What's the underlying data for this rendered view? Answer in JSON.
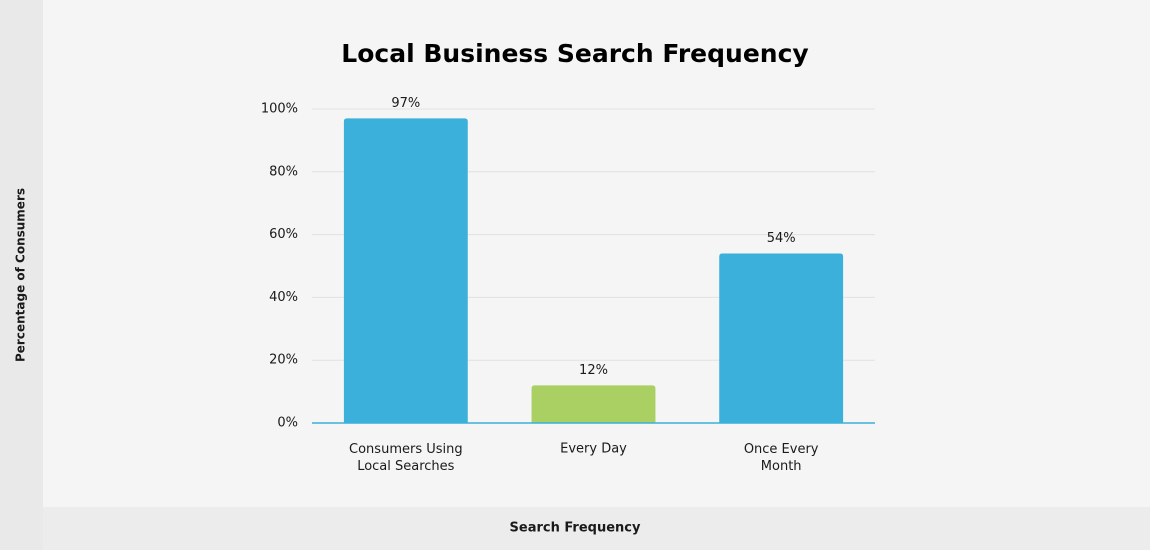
{
  "chart_data": {
    "type": "bar",
    "title": "Local Business Search Frequency",
    "x_label": "Search Frequency",
    "y_label": "Percentage of Consumers",
    "categories": [
      "Consumers Using\nLocal Searches",
      "Every Day",
      "Once Every\nMonth"
    ],
    "values": [
      97,
      12,
      54
    ],
    "value_labels": [
      "97%",
      "12%",
      "54%"
    ],
    "colors": [
      "#3bb0da",
      "#aacf63",
      "#3bb0da"
    ],
    "ylim": [
      0,
      100
    ],
    "yticks": [
      {
        "value": 0,
        "label": "0%"
      },
      {
        "value": 20,
        "label": "20%"
      },
      {
        "value": 40,
        "label": "40%"
      },
      {
        "value": 60,
        "label": "60%"
      },
      {
        "value": 80,
        "label": "80%"
      },
      {
        "value": 100,
        "label": "100%"
      }
    ],
    "grid": true
  }
}
